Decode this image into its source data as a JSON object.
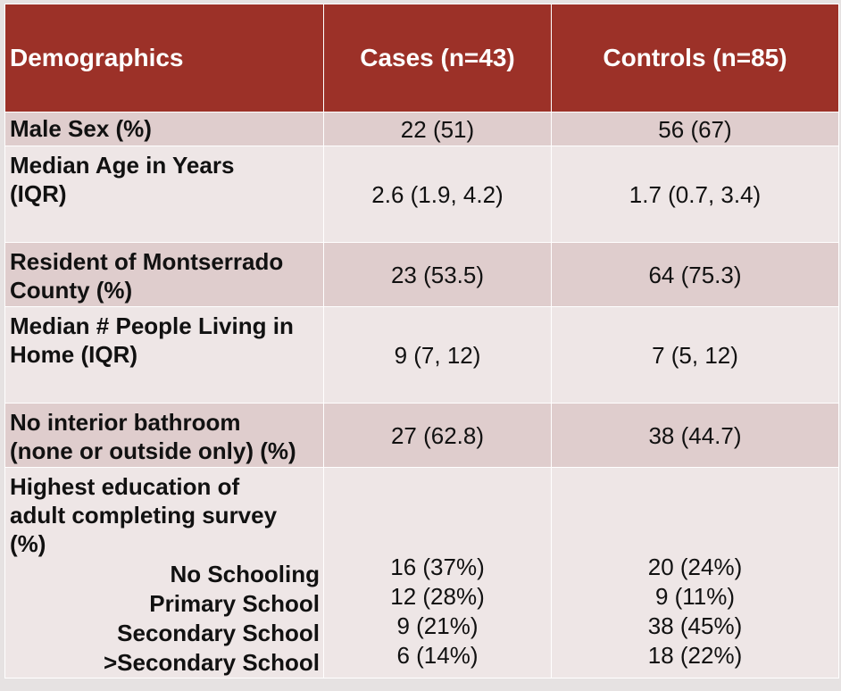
{
  "header": {
    "col0": "Demographics",
    "col1": "Cases (n=43)",
    "col2": "Controls (n=85)"
  },
  "rows": [
    {
      "label_lines": [
        "Male Sex (%)"
      ],
      "cases": "22 (51)",
      "controls": "56 (67)"
    },
    {
      "label_lines": [
        "Median Age in Years",
        "(IQR)"
      ],
      "cases": "2.6  (1.9, 4.2)",
      "controls": "1.7 (0.7, 3.4)"
    },
    {
      "label_lines": [
        "Resident of Montserrado",
        "County (%)"
      ],
      "cases": "23 (53.5)",
      "controls": "64 (75.3)"
    },
    {
      "label_lines": [
        "Median # People Living in",
        "Home (IQR)"
      ],
      "cases": "9 (7, 12)",
      "controls": "7  (5, 12)"
    },
    {
      "label_lines": [
        "No interior bathroom",
        "(none or outside only) (%)"
      ],
      "cases": "27 (62.8)",
      "controls": "38 (44.7)"
    }
  ],
  "education": {
    "label_lines": [
      "Highest education of",
      "adult completing survey",
      "(%)"
    ],
    "levels": [
      {
        "label": "No Schooling",
        "cases": "16 (37%)",
        "controls": "20 (24%)"
      },
      {
        "label": "Primary School",
        "cases": "12 (28%)",
        "controls": "9 (11%)"
      },
      {
        "label": "Secondary School",
        "cases": "9 (21%)",
        "controls": "38 (45%)"
      },
      {
        "label": ">Secondary School",
        "cases": "6 (14%)",
        "controls": "18 (22%)"
      }
    ]
  }
}
